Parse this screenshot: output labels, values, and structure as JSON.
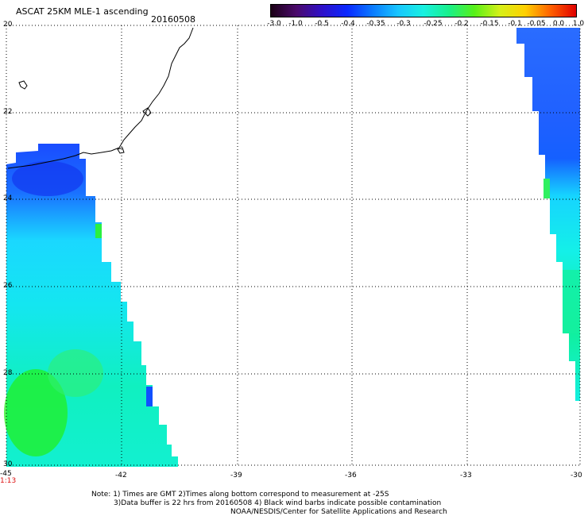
{
  "title": "ASCAT 25KM MLE-1 ascending",
  "date": "20160508",
  "colorbar": {
    "labels": [
      "-3.0",
      "-1.0",
      "-0.5",
      "-0.4",
      "-0.35",
      "-0.3",
      "-0.25",
      "-0.2",
      "-0.15",
      "-0.1",
      "-0.05",
      "0.0",
      "1.0"
    ],
    "colors": [
      "#1b0016",
      "#4b0a6b",
      "#2f10c8",
      "#0a28ff",
      "#0a7bff",
      "#18c6ff",
      "#18f0e0",
      "#18f08a",
      "#57f018",
      "#d6f018",
      "#ffd000",
      "#ff6000",
      "#e00000"
    ]
  },
  "axes": {
    "lat_labels": [
      "20",
      "22",
      "24",
      "26",
      "28",
      "30"
    ],
    "lon_labels": [
      "-45",
      "-42",
      "-39",
      "-36",
      "-33",
      "-30"
    ],
    "corner_time": "1:13"
  },
  "notes": {
    "line1": "Note: 1) Times are GMT 2)Times along bottom correspond to measurement at -25S",
    "line2": "3)Data buffer is 22 hrs from 20160508 4) Black wind barbs indicate possible contamination",
    "line3": "NOAA/NESDIS/Center for Satellite Applications and Research"
  }
}
